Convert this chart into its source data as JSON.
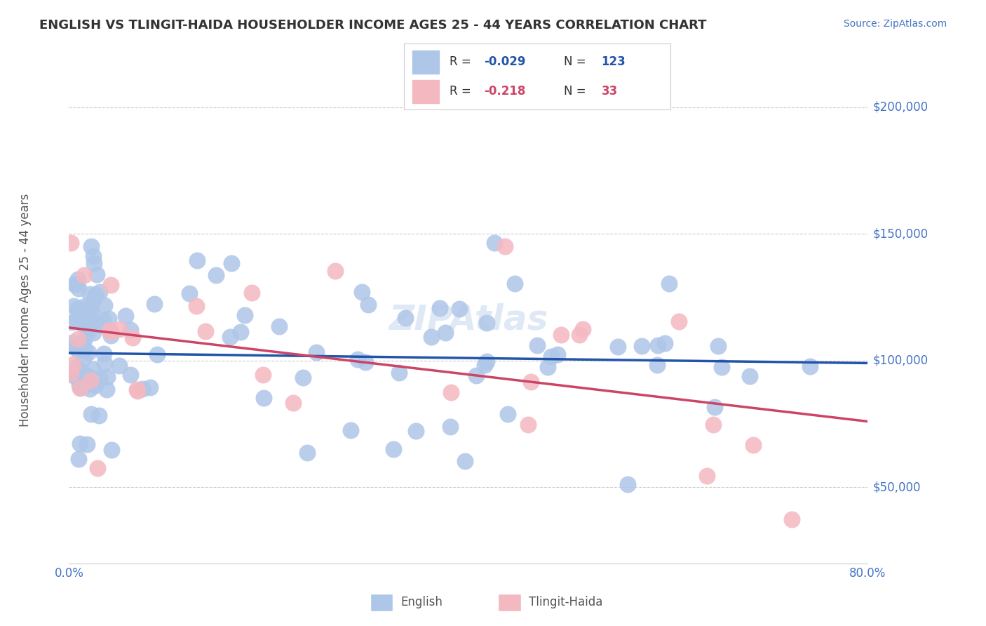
{
  "title": "ENGLISH VS TLINGIT-HAIDA HOUSEHOLDER INCOME AGES 25 - 44 YEARS CORRELATION CHART",
  "source": "Source: ZipAtlas.com",
  "ylabel": "Householder Income Ages 25 - 44 years",
  "xlim": [
    0.0,
    0.8
  ],
  "ylim": [
    20000,
    220000
  ],
  "yticks": [
    50000,
    100000,
    150000,
    200000
  ],
  "ytick_labels": [
    "$50,000",
    "$100,000",
    "$150,000",
    "$200,000"
  ],
  "xticks": [
    0.0,
    0.2,
    0.4,
    0.6,
    0.8
  ],
  "xtick_labels": [
    "0.0%",
    "",
    "",
    "",
    "80.0%"
  ],
  "watermark": "ZIPAtlas",
  "background_color": "#ffffff",
  "grid_color": "#cccccc",
  "title_color": "#333333",
  "axis_color": "#4472c4",
  "english_scatter_color": "#aec6e8",
  "english_line_color": "#2255aa",
  "tlingit_scatter_color": "#f4b8c1",
  "tlingit_line_color": "#cc4466",
  "english_N": 123,
  "tlingit_N": 33,
  "english_line_y0": 103000,
  "english_line_y1": 99000,
  "tlingit_line_y0": 113000,
  "tlingit_line_y1": 76000,
  "legend_R_color": "#2255aa",
  "legend_tli_color": "#cc4466"
}
